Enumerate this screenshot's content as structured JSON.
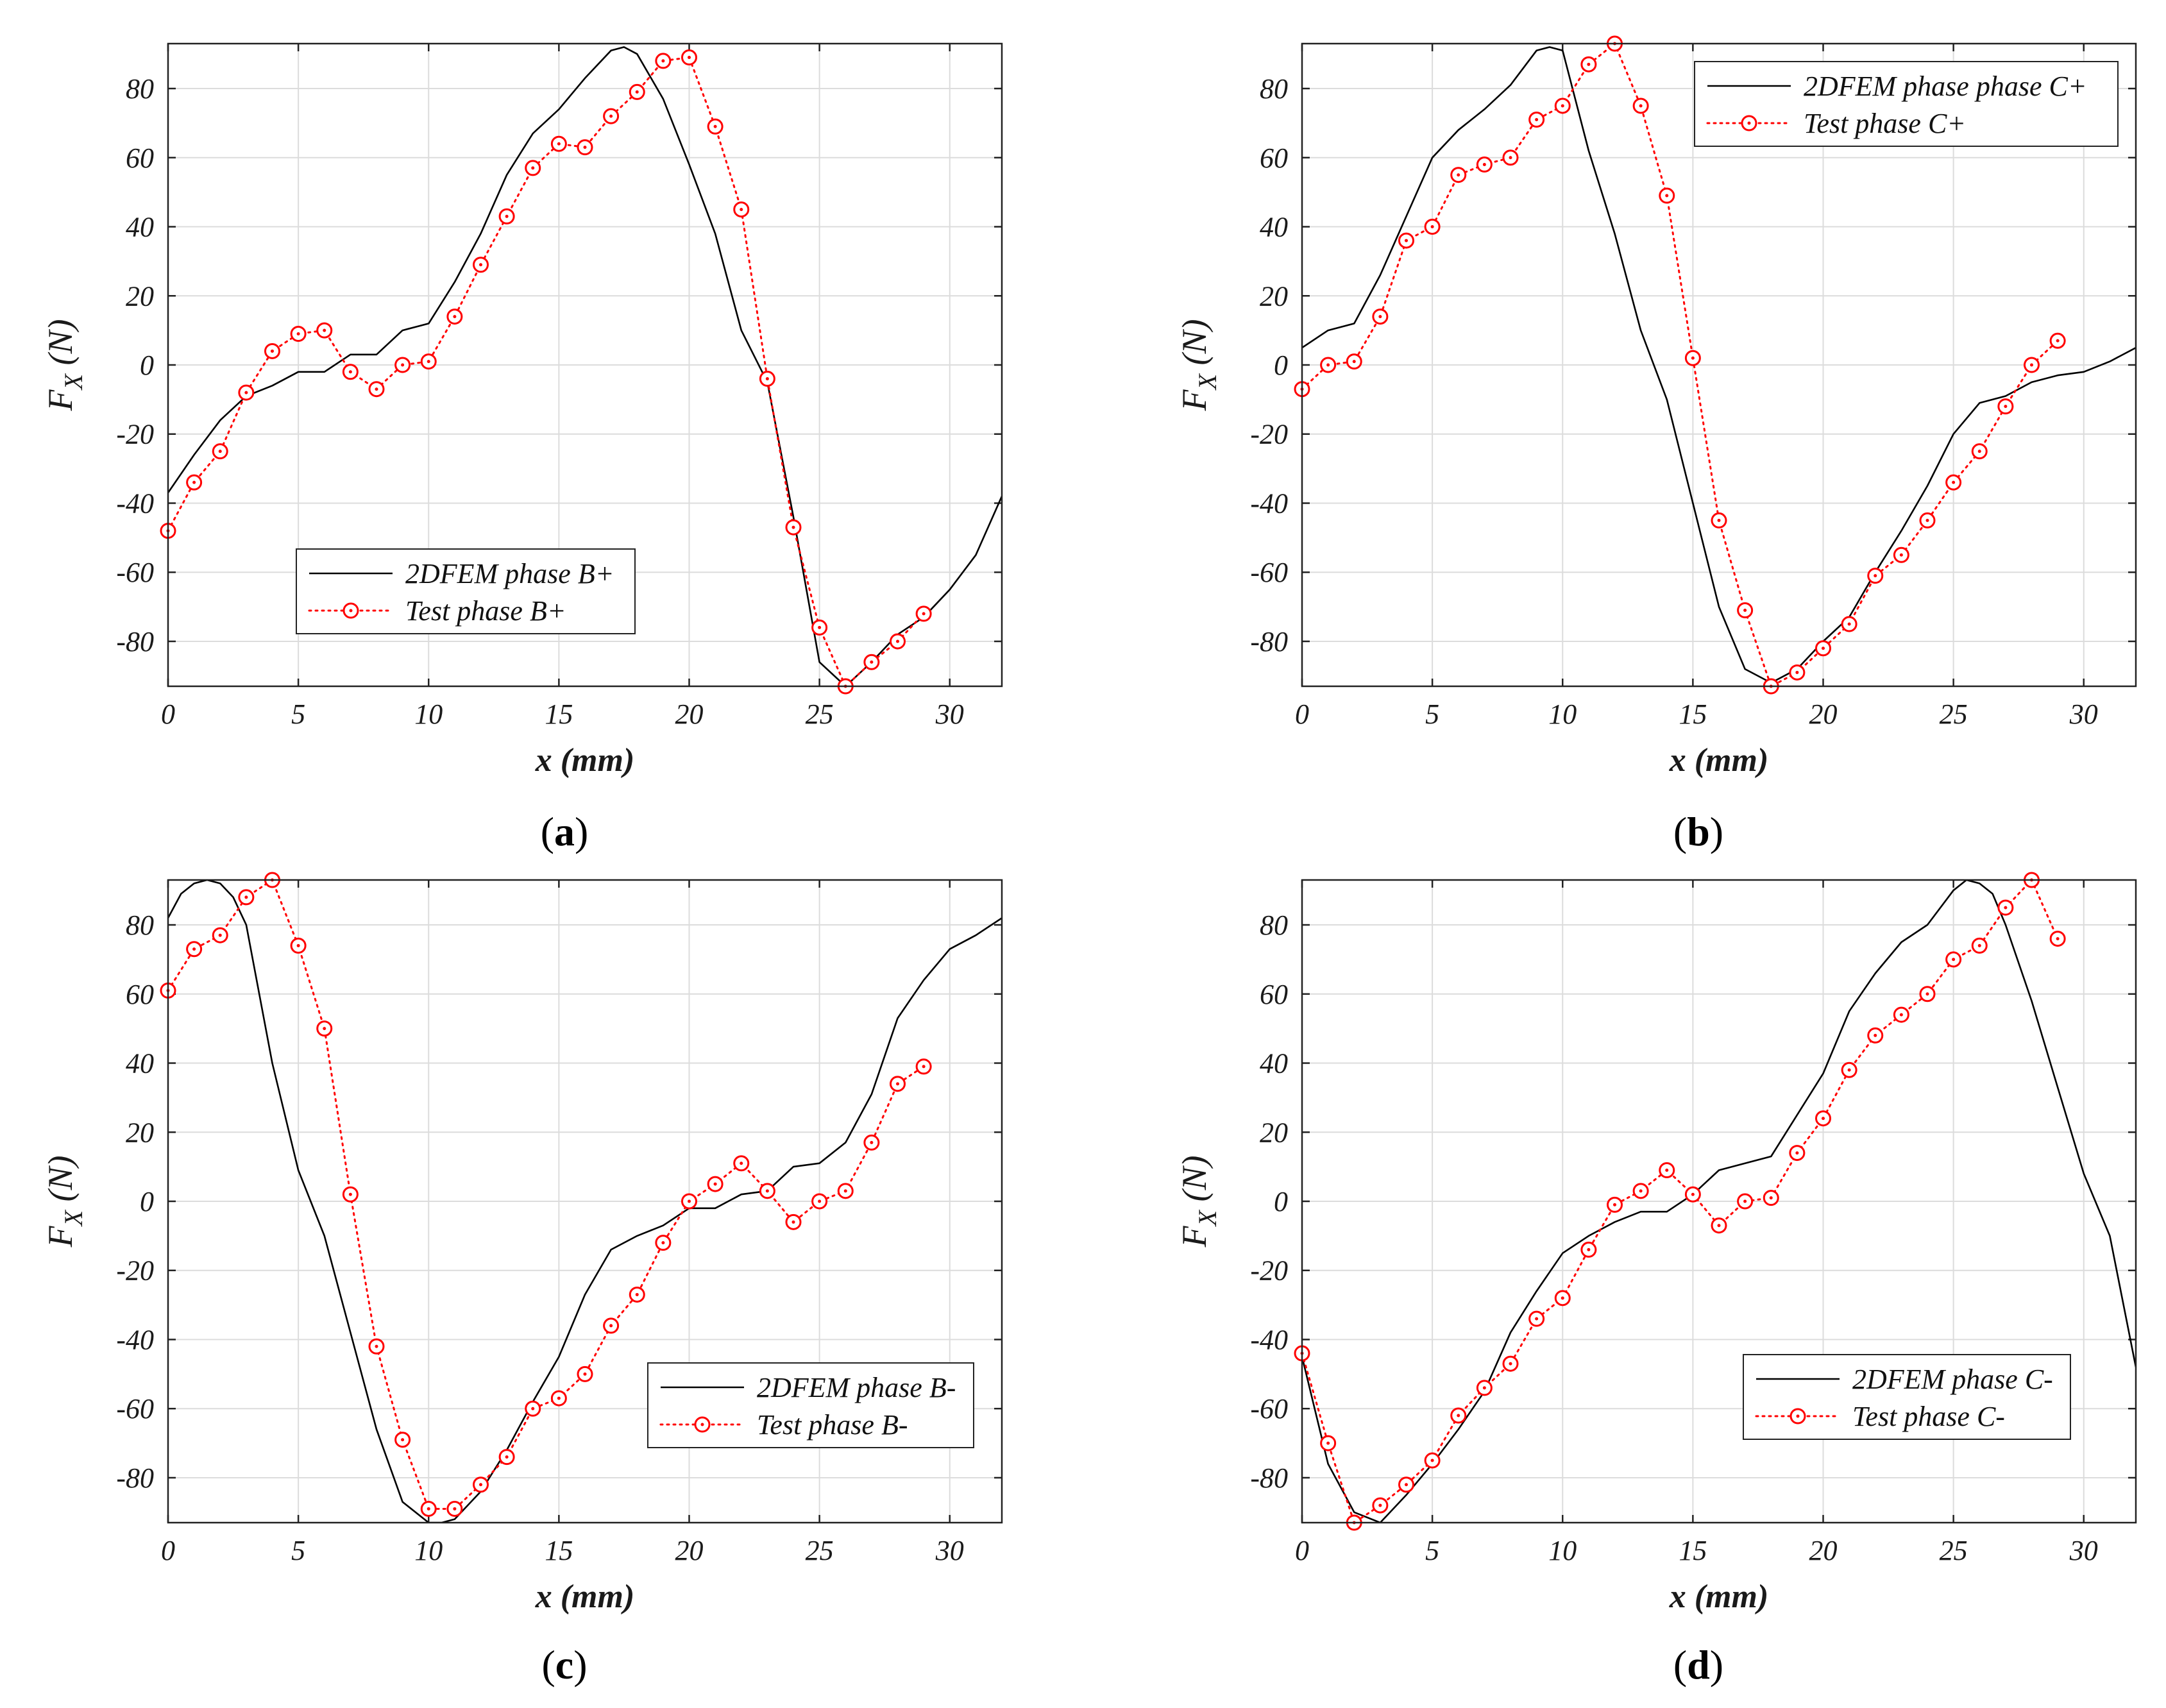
{
  "figure": {
    "colors": {
      "fem": "#000000",
      "test": "#ff0000",
      "grid": "#dcdcdc",
      "axis": "#222222"
    }
  },
  "chart_data": [
    {
      "type": "line",
      "panel_label": "a",
      "xlabel": "x (mm)",
      "ylabel": "F",
      "ylabel_sub": "X",
      "ylabel_unit": " (N)",
      "xlim": [
        0,
        32
      ],
      "ylim": [
        -93,
        93
      ],
      "xticks": [
        0,
        5,
        10,
        15,
        20,
        25,
        30
      ],
      "yticks": [
        -80,
        -60,
        -40,
        -20,
        0,
        20,
        40,
        60,
        80
      ],
      "legend_position": "lower-center",
      "series": [
        {
          "name": "2DFEM phase B+",
          "style": "solid-black",
          "x": [
            0,
            1,
            2,
            3,
            4,
            5,
            6,
            7,
            8,
            9,
            10,
            11,
            12,
            13,
            14,
            15,
            16,
            17,
            17.5,
            18,
            19,
            20,
            21,
            22,
            23,
            24,
            25,
            26,
            27,
            28,
            29,
            30,
            31,
            32
          ],
          "y": [
            -37,
            -26,
            -16,
            -9,
            -6,
            -2,
            -2,
            3,
            3,
            10,
            12,
            24,
            38,
            55,
            67,
            74,
            83,
            91,
            92,
            90,
            77,
            58,
            38,
            10,
            -5,
            -44,
            -86,
            -93,
            -86,
            -78,
            -73,
            -65,
            -55,
            -38
          ]
        },
        {
          "name": "Test phase B+",
          "style": "dotted-red-circle",
          "x": [
            0,
            1,
            2,
            3,
            4,
            5,
            6,
            7,
            8,
            9,
            10,
            11,
            12,
            13,
            14,
            15,
            16,
            17,
            18,
            19,
            20,
            21,
            22,
            23,
            24,
            25,
            26,
            27,
            28,
            29
          ],
          "y": [
            -48,
            -34,
            -25,
            -8,
            4,
            9,
            10,
            -2,
            -7,
            0,
            1,
            14,
            29,
            43,
            57,
            64,
            63,
            72,
            79,
            88,
            89,
            69,
            45,
            -4,
            -47,
            -76,
            -93,
            -86,
            -80,
            -72
          ]
        }
      ]
    },
    {
      "type": "line",
      "panel_label": "b",
      "xlabel": "x (mm)",
      "ylabel": "F",
      "ylabel_sub": "X",
      "ylabel_unit": " (N)",
      "xlim": [
        0,
        32
      ],
      "ylim": [
        -93,
        93
      ],
      "xticks": [
        0,
        5,
        10,
        15,
        20,
        25,
        30
      ],
      "yticks": [
        -80,
        -60,
        -40,
        -20,
        0,
        20,
        40,
        60,
        80
      ],
      "legend_position": "top-right",
      "series": [
        {
          "name": "2DFEM phase phase C+",
          "style": "solid-black",
          "x": [
            0,
            1,
            2,
            3,
            4,
            5,
            6,
            7,
            8,
            9,
            9.5,
            10,
            11,
            12,
            13,
            14,
            15,
            16,
            17,
            18,
            19,
            20,
            21,
            22,
            23,
            24,
            25,
            26,
            27,
            28,
            29,
            30,
            31,
            32
          ],
          "y": [
            5,
            10,
            12,
            26,
            43,
            60,
            68,
            74,
            81,
            91,
            92,
            91,
            62,
            38,
            10,
            -10,
            -40,
            -70,
            -88,
            -92,
            -88,
            -80,
            -73,
            -60,
            -48,
            -35,
            -20,
            -11,
            -9,
            -5,
            -3,
            -2,
            1,
            5
          ]
        },
        {
          "name": "Test phase C+",
          "style": "dotted-red-circle",
          "x": [
            0,
            1,
            2,
            3,
            4,
            5,
            6,
            7,
            8,
            9,
            10,
            11,
            12,
            13,
            14,
            15,
            16,
            17,
            18,
            19,
            20,
            21,
            22,
            23,
            24,
            25,
            26,
            27,
            28,
            29
          ],
          "y": [
            -7,
            0,
            1,
            14,
            36,
            40,
            55,
            58,
            60,
            71,
            75,
            87,
            93,
            75,
            49,
            2,
            -45,
            -71,
            -93,
            -89,
            -82,
            -75,
            -61,
            -55,
            -45,
            -34,
            -25,
            -12,
            0,
            7
          ]
        }
      ]
    },
    {
      "type": "line",
      "panel_label": "c",
      "xlabel": "x (mm)",
      "ylabel": "F",
      "ylabel_sub": "X",
      "ylabel_unit": " (N)",
      "xlim": [
        0,
        32
      ],
      "ylim": [
        -93,
        93
      ],
      "xticks": [
        0,
        5,
        10,
        15,
        20,
        25,
        30
      ],
      "yticks": [
        -80,
        -60,
        -40,
        -20,
        0,
        20,
        40,
        60,
        80
      ],
      "legend_position": "lower-right",
      "series": [
        {
          "name": "2DFEM phase B-",
          "style": "solid-black",
          "x": [
            0,
            0.5,
            1,
            1.5,
            2,
            2.5,
            3,
            4,
            5,
            6,
            7,
            8,
            9,
            10,
            10.5,
            11,
            12,
            13,
            14,
            15,
            16,
            17,
            18,
            19,
            20,
            21,
            22,
            23,
            24,
            25,
            26,
            27,
            28,
            29,
            30,
            31,
            32
          ],
          "y": [
            82,
            89,
            92,
            93,
            92,
            88,
            80,
            40,
            9,
            -10,
            -38,
            -66,
            -87,
            -93,
            -93,
            -92,
            -84,
            -72,
            -58,
            -45,
            -27,
            -14,
            -10,
            -7,
            -2,
            -2,
            2,
            3,
            10,
            11,
            17,
            31,
            53,
            64,
            73,
            77,
            82
          ]
        },
        {
          "name": "Test phase B-",
          "style": "dotted-red-circle",
          "x": [
            0,
            1,
            2,
            3,
            4,
            5,
            6,
            7,
            8,
            9,
            10,
            11,
            12,
            13,
            14,
            15,
            16,
            17,
            18,
            19,
            20,
            21,
            22,
            23,
            24,
            25,
            26,
            27,
            28,
            29
          ],
          "y": [
            61,
            73,
            77,
            88,
            93,
            74,
            50,
            2,
            -42,
            -69,
            -89,
            -89,
            -82,
            -74,
            -60,
            -57,
            -50,
            -36,
            -27,
            -12,
            0,
            5,
            11,
            3,
            -6,
            0,
            3,
            17,
            34,
            39
          ]
        }
      ]
    },
    {
      "type": "line",
      "panel_label": "d",
      "xlabel": "x (mm)",
      "ylabel": "F",
      "ylabel_sub": "X",
      "ylabel_unit": " (N)",
      "xlim": [
        0,
        32
      ],
      "ylim": [
        -93,
        93
      ],
      "xticks": [
        0,
        5,
        10,
        15,
        20,
        25,
        30
      ],
      "yticks": [
        -80,
        -60,
        -40,
        -20,
        0,
        20,
        40,
        60,
        80
      ],
      "legend_position": "lower-right",
      "series": [
        {
          "name": "2DFEM phase C-",
          "style": "solid-black",
          "x": [
            0,
            1,
            2,
            3,
            4,
            5,
            6,
            7,
            8,
            9,
            10,
            11,
            12,
            13,
            14,
            15,
            16,
            17,
            18,
            19,
            20,
            21,
            22,
            23,
            24,
            25,
            25.5,
            26,
            26.5,
            27,
            28,
            29,
            30,
            31,
            32
          ],
          "y": [
            -45,
            -76,
            -90,
            -93,
            -85,
            -76,
            -66,
            -55,
            -38,
            -26,
            -15,
            -10,
            -6,
            -3,
            -3,
            2,
            9,
            11,
            13,
            25,
            37,
            55,
            66,
            75,
            80,
            90,
            93,
            92,
            89,
            80,
            58,
            33,
            8,
            -10,
            -48
          ]
        },
        {
          "name": "Test phase C-",
          "style": "dotted-red-circle",
          "x": [
            0,
            1,
            2,
            3,
            4,
            5,
            6,
            7,
            8,
            9,
            10,
            11,
            12,
            13,
            14,
            15,
            16,
            17,
            18,
            19,
            20,
            21,
            22,
            23,
            24,
            25,
            26,
            27,
            28,
            29
          ],
          "y": [
            -44,
            -70,
            -93,
            -88,
            -82,
            -75,
            -62,
            -54,
            -47,
            -34,
            -28,
            -14,
            -1,
            3,
            9,
            2,
            -7,
            0,
            1,
            14,
            24,
            38,
            48,
            54,
            60,
            70,
            74,
            85,
            93,
            76
          ]
        }
      ]
    }
  ]
}
